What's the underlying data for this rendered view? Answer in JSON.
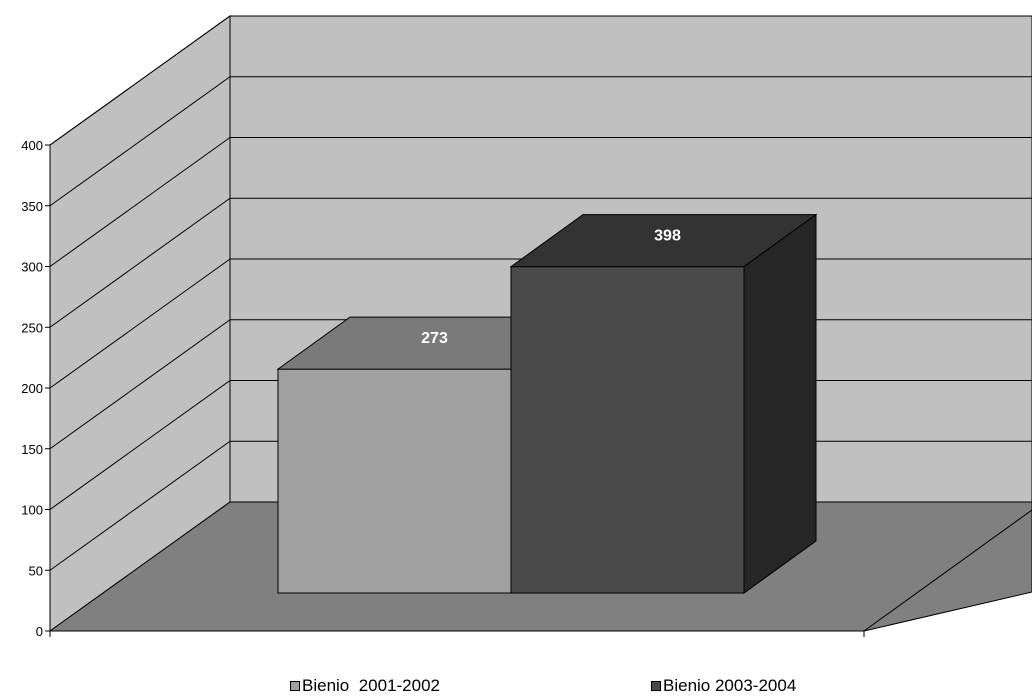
{
  "chart_data": {
    "type": "bar",
    "categories": [
      ""
    ],
    "series": [
      {
        "name": "Bienio  2001-2002",
        "values": [
          273
        ],
        "color": "#a0a0a0",
        "top_color": "#7a7a7a",
        "side_color": "#606060"
      },
      {
        "name": "Bienio 2003-2004",
        "values": [
          398
        ],
        "color": "#4a4a4a",
        "top_color": "#333333",
        "side_color": "#262626"
      }
    ],
    "title": "",
    "xlabel": "",
    "ylabel": "",
    "ylim": [
      0,
      400
    ],
    "yticks": [
      0,
      50,
      100,
      150,
      200,
      250,
      300,
      350,
      400
    ],
    "grid": true,
    "legend": "bottom",
    "style": "3d-column",
    "colors": {
      "wall": "#c0c0c0",
      "floor": "#808080",
      "grid": "#000000"
    }
  }
}
